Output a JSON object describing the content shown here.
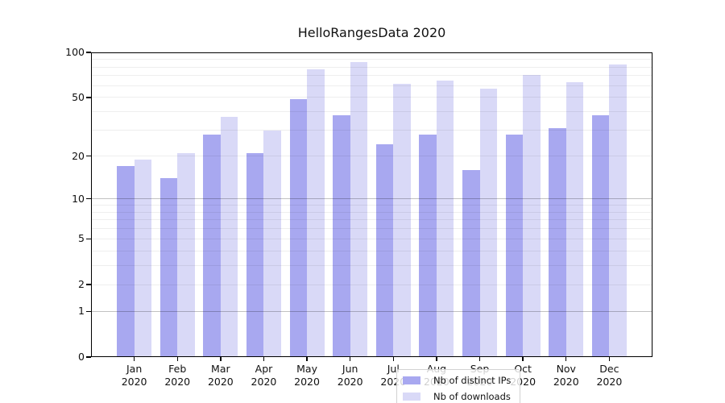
{
  "background_color": "#ffffff",
  "axis_color": "#000000",
  "chart_data": {
    "type": "bar",
    "title": "HelloRangesData 2020",
    "xlabel": "",
    "ylabel": "",
    "year": "2020",
    "categories": [
      "Jan",
      "Feb",
      "Mar",
      "Apr",
      "May",
      "Jun",
      "Jul",
      "Aug",
      "Sep",
      "Oct",
      "Nov",
      "Dec"
    ],
    "series": [
      {
        "name": "Nb of distinct IPs",
        "color": "#a8a8f0",
        "values": [
          17,
          14,
          28,
          21,
          49,
          38,
          24,
          28,
          16,
          28,
          31,
          38
        ]
      },
      {
        "name": "Nb of downloads",
        "color": "#d9d9f7",
        "values": [
          19,
          21,
          37,
          30,
          77,
          86,
          62,
          65,
          57,
          71,
          63,
          83
        ]
      }
    ],
    "yscale": "log1p",
    "ylim": [
      0,
      100
    ],
    "ytick_labels": [
      100,
      50,
      20,
      10,
      5,
      2,
      1,
      0
    ],
    "grid_minor_values": [
      2,
      3,
      4,
      5,
      6,
      7,
      8,
      9,
      20,
      30,
      40,
      50,
      60,
      70,
      80,
      90
    ],
    "grid_major_values": [
      1,
      10
    ],
    "grid_on": true,
    "legend_position": "lower center"
  }
}
